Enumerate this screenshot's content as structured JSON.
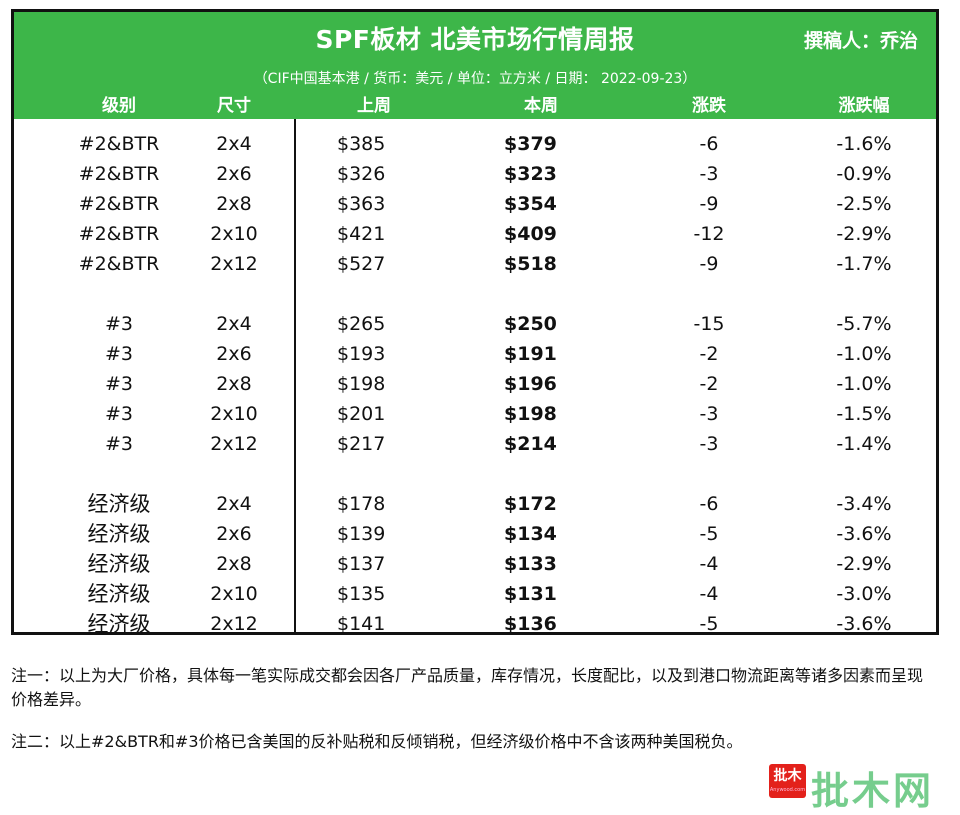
{
  "header": {
    "title": "SPF板材 北美市场行情周报",
    "author": "撰稿人：乔治",
    "subtitle": "（CIF中国基本港 / 货币：美元 / 单位：立方米 / 日期： 2022-09-23）",
    "columns": [
      "级别",
      "尺寸",
      "上周",
      "本周",
      "涨跌",
      "涨跌幅"
    ]
  },
  "rows": [
    {
      "grade": "#2&BTR",
      "size": "2x4",
      "last": "$385",
      "this": "$379",
      "chg": "-6",
      "pct": "-1.6%"
    },
    {
      "grade": "#2&BTR",
      "size": "2x6",
      "last": "$326",
      "this": "$323",
      "chg": "-3",
      "pct": "-0.9%"
    },
    {
      "grade": "#2&BTR",
      "size": "2x8",
      "last": "$363",
      "this": "$354",
      "chg": "-9",
      "pct": "-2.5%"
    },
    {
      "grade": "#2&BTR",
      "size": "2x10",
      "last": "$421",
      "this": "$409",
      "chg": "-12",
      "pct": "-2.9%"
    },
    {
      "grade": "#2&BTR",
      "size": "2x12",
      "last": "$527",
      "this": "$518",
      "chg": "-9",
      "pct": "-1.7%"
    },
    {
      "grade": "#3",
      "size": "2x4",
      "last": "$265",
      "this": "$250",
      "chg": "-15",
      "pct": "-5.7%"
    },
    {
      "grade": "#3",
      "size": "2x6",
      "last": "$193",
      "this": "$191",
      "chg": "-2",
      "pct": "-1.0%"
    },
    {
      "grade": "#3",
      "size": "2x8",
      "last": "$198",
      "this": "$196",
      "chg": "-2",
      "pct": "-1.0%"
    },
    {
      "grade": "#3",
      "size": "2x10",
      "last": "$201",
      "this": "$198",
      "chg": "-3",
      "pct": "-1.5%"
    },
    {
      "grade": "#3",
      "size": "2x12",
      "last": "$217",
      "this": "$214",
      "chg": "-3",
      "pct": "-1.4%"
    },
    {
      "grade": "经济级",
      "size": "2x4",
      "last": "$178",
      "this": "$172",
      "chg": "-6",
      "pct": "-3.4%"
    },
    {
      "grade": "经济级",
      "size": "2x6",
      "last": "$139",
      "this": "$134",
      "chg": "-5",
      "pct": "-3.6%"
    },
    {
      "grade": "经济级",
      "size": "2x8",
      "last": "$137",
      "this": "$133",
      "chg": "-4",
      "pct": "-2.9%"
    },
    {
      "grade": "经济级",
      "size": "2x10",
      "last": "$135",
      "this": "$131",
      "chg": "-4",
      "pct": "-3.0%"
    },
    {
      "grade": "经济级",
      "size": "2x12",
      "last": "$141",
      "this": "$136",
      "chg": "-5",
      "pct": "-3.6%"
    }
  ],
  "notes": {
    "note1": "注一：以上为大厂价格，具体每一笔实际成交都会因各厂产品质量，库存情况，长度配比，以及到港口物流距离等诸多因素而呈现价格差异。",
    "note2": "注二：以上#2&BTR和#3价格已含美国的反补贴税和反倾销税，但经济级价格中不含该两种美国税负。"
  },
  "logo": {
    "main": "批木",
    "sub": "Anywood.com"
  },
  "brand": "批木网",
  "colors": {
    "header_green": "#3db649",
    "logo_red": "#e3211b",
    "brand_green": "#5fc57a"
  }
}
